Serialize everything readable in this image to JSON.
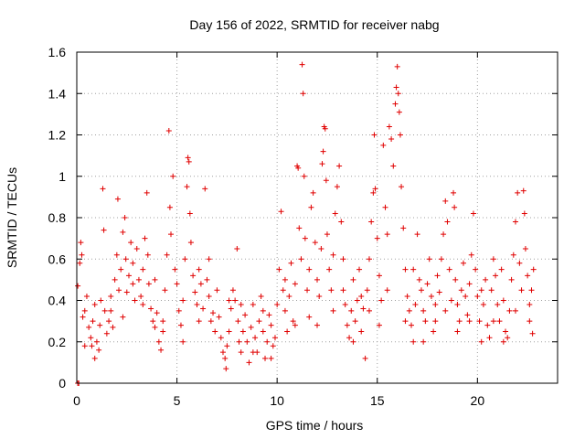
{
  "chart_data": {
    "type": "scatter",
    "title": "Day 156 of 2022, SRMTID for receiver nabg",
    "xlabel": "GPS time / hours",
    "ylabel": "SRMTID / TECUs",
    "xlim": [
      0,
      24
    ],
    "ylim": [
      0,
      1.6
    ],
    "xticks": [
      0,
      5,
      10,
      15,
      20
    ],
    "xtick_labels": [
      "0",
      "5",
      "10",
      "15",
      "20"
    ],
    "yticks": [
      0,
      0.2,
      0.4,
      0.6,
      0.8,
      1,
      1.2,
      1.4,
      1.6
    ],
    "ytick_labels": [
      "0",
      "0.2",
      "0.4",
      "0.6",
      "0.8",
      "1",
      "1.2",
      "1.4",
      "1.6"
    ],
    "grid": true,
    "marker": "plus",
    "marker_color": "#e00000",
    "series": [
      {
        "name": "SRMTID",
        "points": [
          [
            0.05,
            0.0
          ],
          [
            0.1,
            0.0
          ],
          [
            0.05,
            0.47
          ],
          [
            0.15,
            0.58
          ],
          [
            0.2,
            0.68
          ],
          [
            0.25,
            0.62
          ],
          [
            0.3,
            0.32
          ],
          [
            0.4,
            0.35
          ],
          [
            0.5,
            0.42
          ],
          [
            0.6,
            0.27
          ],
          [
            0.7,
            0.22
          ],
          [
            0.75,
            0.18
          ],
          [
            0.8,
            0.3
          ],
          [
            0.9,
            0.38
          ],
          [
            1.0,
            0.2
          ],
          [
            1.1,
            0.16
          ],
          [
            1.15,
            0.28
          ],
          [
            1.2,
            0.4
          ],
          [
            1.3,
            0.94
          ],
          [
            1.35,
            0.74
          ],
          [
            1.4,
            0.35
          ],
          [
            1.5,
            0.24
          ],
          [
            1.6,
            0.3
          ],
          [
            1.7,
            0.42
          ],
          [
            1.8,
            0.27
          ],
          [
            1.9,
            0.5
          ],
          [
            2.0,
            0.62
          ],
          [
            2.05,
            0.89
          ],
          [
            2.1,
            0.45
          ],
          [
            2.2,
            0.55
          ],
          [
            2.3,
            0.73
          ],
          [
            2.4,
            0.8
          ],
          [
            2.45,
            0.6
          ],
          [
            2.5,
            0.44
          ],
          [
            2.6,
            0.52
          ],
          [
            2.7,
            0.68
          ],
          [
            2.8,
            0.58
          ],
          [
            2.9,
            0.4
          ],
          [
            3.0,
            0.65
          ],
          [
            3.1,
            0.5
          ],
          [
            3.2,
            0.42
          ],
          [
            3.3,
            0.55
          ],
          [
            3.4,
            0.7
          ],
          [
            3.5,
            0.92
          ],
          [
            3.55,
            0.62
          ],
          [
            3.6,
            0.48
          ],
          [
            3.7,
            0.36
          ],
          [
            3.8,
            0.3
          ],
          [
            3.9,
            0.27
          ],
          [
            4.0,
            0.34
          ],
          [
            4.1,
            0.2
          ],
          [
            4.2,
            0.16
          ],
          [
            4.3,
            0.3
          ],
          [
            4.4,
            0.45
          ],
          [
            4.5,
            0.62
          ],
          [
            4.6,
            1.22
          ],
          [
            4.65,
            0.85
          ],
          [
            4.7,
            0.72
          ],
          [
            4.8,
            1.0
          ],
          [
            4.9,
            0.55
          ],
          [
            5.0,
            0.48
          ],
          [
            5.1,
            0.35
          ],
          [
            5.2,
            0.28
          ],
          [
            5.3,
            0.4
          ],
          [
            5.4,
            0.6
          ],
          [
            5.5,
            0.95
          ],
          [
            5.55,
            1.09
          ],
          [
            5.6,
            1.07
          ],
          [
            5.65,
            0.82
          ],
          [
            5.7,
            0.68
          ],
          [
            5.8,
            0.52
          ],
          [
            5.9,
            0.44
          ],
          [
            6.0,
            0.38
          ],
          [
            6.1,
            0.55
          ],
          [
            6.2,
            0.48
          ],
          [
            6.3,
            0.36
          ],
          [
            6.4,
            0.94
          ],
          [
            6.5,
            0.5
          ],
          [
            6.6,
            0.42
          ],
          [
            6.7,
            0.3
          ],
          [
            6.8,
            0.34
          ],
          [
            6.9,
            0.25
          ],
          [
            7.0,
            0.45
          ],
          [
            7.1,
            0.32
          ],
          [
            7.2,
            0.22
          ],
          [
            7.3,
            0.15
          ],
          [
            7.4,
            0.12
          ],
          [
            7.45,
            0.07
          ],
          [
            7.5,
            0.18
          ],
          [
            7.6,
            0.25
          ],
          [
            7.7,
            0.36
          ],
          [
            7.8,
            0.45
          ],
          [
            7.9,
            0.4
          ],
          [
            8.0,
            0.65
          ],
          [
            8.05,
            0.3
          ],
          [
            8.1,
            0.2
          ],
          [
            8.2,
            0.15
          ],
          [
            8.3,
            0.25
          ],
          [
            8.4,
            0.33
          ],
          [
            8.5,
            0.2
          ],
          [
            8.6,
            0.1
          ],
          [
            8.7,
            0.27
          ],
          [
            8.8,
            0.38
          ],
          [
            8.9,
            0.22
          ],
          [
            9.0,
            0.15
          ],
          [
            9.1,
            0.3
          ],
          [
            9.2,
            0.42
          ],
          [
            9.3,
            0.25
          ],
          [
            9.4,
            0.12
          ],
          [
            9.5,
            0.2
          ],
          [
            9.6,
            0.33
          ],
          [
            9.7,
            0.28
          ],
          [
            9.8,
            0.18
          ],
          [
            9.9,
            0.22
          ],
          [
            10.0,
            0.38
          ],
          [
            10.1,
            0.55
          ],
          [
            10.2,
            0.83
          ],
          [
            10.3,
            0.45
          ],
          [
            10.4,
            0.35
          ],
          [
            10.5,
            0.25
          ],
          [
            10.6,
            0.42
          ],
          [
            10.7,
            0.58
          ],
          [
            10.8,
            0.3
          ],
          [
            10.9,
            0.48
          ],
          [
            11.0,
            1.05
          ],
          [
            11.05,
            1.04
          ],
          [
            11.1,
            0.75
          ],
          [
            11.2,
            0.6
          ],
          [
            11.25,
            1.54
          ],
          [
            11.3,
            1.4
          ],
          [
            11.35,
            1.0
          ],
          [
            11.4,
            0.7
          ],
          [
            11.5,
            0.45
          ],
          [
            11.6,
            0.55
          ],
          [
            11.7,
            0.85
          ],
          [
            11.8,
            0.92
          ],
          [
            11.9,
            0.68
          ],
          [
            12.0,
            0.5
          ],
          [
            12.1,
            0.42
          ],
          [
            12.2,
            0.65
          ],
          [
            12.25,
            1.06
          ],
          [
            12.3,
            1.12
          ],
          [
            12.35,
            1.24
          ],
          [
            12.4,
            1.23
          ],
          [
            12.45,
            0.98
          ],
          [
            12.5,
            0.72
          ],
          [
            12.6,
            0.55
          ],
          [
            12.7,
            0.45
          ],
          [
            12.8,
            0.62
          ],
          [
            12.9,
            0.82
          ],
          [
            13.0,
            0.95
          ],
          [
            13.1,
            1.05
          ],
          [
            13.2,
            0.78
          ],
          [
            13.3,
            0.6
          ],
          [
            13.4,
            0.38
          ],
          [
            13.5,
            0.28
          ],
          [
            13.6,
            0.22
          ],
          [
            13.7,
            0.35
          ],
          [
            13.8,
            0.5
          ],
          [
            13.9,
            0.3
          ],
          [
            14.0,
            0.4
          ],
          [
            14.1,
            0.55
          ],
          [
            14.2,
            0.42
          ],
          [
            14.3,
            0.36
          ],
          [
            14.4,
            0.12
          ],
          [
            14.5,
            0.45
          ],
          [
            14.6,
            0.6
          ],
          [
            14.7,
            0.78
          ],
          [
            14.8,
            0.92
          ],
          [
            14.85,
            1.2
          ],
          [
            14.9,
            0.94
          ],
          [
            15.0,
            0.7
          ],
          [
            15.1,
            0.52
          ],
          [
            15.2,
            0.4
          ],
          [
            15.3,
            1.15
          ],
          [
            15.4,
            0.85
          ],
          [
            15.5,
            0.72
          ],
          [
            15.6,
            1.24
          ],
          [
            15.7,
            1.18
          ],
          [
            15.8,
            1.05
          ],
          [
            15.9,
            1.35
          ],
          [
            15.95,
            1.43
          ],
          [
            16.0,
            1.53
          ],
          [
            16.05,
            1.4
          ],
          [
            16.1,
            1.31
          ],
          [
            16.15,
            1.2
          ],
          [
            16.2,
            0.95
          ],
          [
            16.3,
            0.75
          ],
          [
            16.4,
            0.55
          ],
          [
            16.5,
            0.42
          ],
          [
            16.6,
            0.35
          ],
          [
            16.7,
            0.28
          ],
          [
            16.8,
            0.2
          ],
          [
            16.9,
            0.38
          ],
          [
            17.0,
            0.72
          ],
          [
            17.1,
            0.5
          ],
          [
            17.2,
            0.45
          ],
          [
            17.3,
            0.35
          ],
          [
            17.4,
            0.3
          ],
          [
            17.5,
            0.48
          ],
          [
            17.6,
            0.6
          ],
          [
            17.7,
            0.42
          ],
          [
            17.8,
            0.25
          ],
          [
            17.9,
            0.38
          ],
          [
            18.0,
            0.52
          ],
          [
            18.1,
            0.44
          ],
          [
            18.2,
            0.6
          ],
          [
            18.3,
            0.72
          ],
          [
            18.4,
            0.88
          ],
          [
            18.5,
            0.78
          ],
          [
            18.6,
            0.55
          ],
          [
            18.7,
            0.4
          ],
          [
            18.8,
            0.92
          ],
          [
            18.85,
            0.85
          ],
          [
            18.9,
            0.5
          ],
          [
            19.0,
            0.38
          ],
          [
            19.1,
            0.3
          ],
          [
            19.2,
            0.45
          ],
          [
            19.3,
            0.58
          ],
          [
            19.4,
            0.42
          ],
          [
            19.5,
            0.33
          ],
          [
            19.6,
            0.48
          ],
          [
            19.7,
            0.62
          ],
          [
            19.8,
            0.82
          ],
          [
            19.9,
            0.55
          ],
          [
            20.0,
            0.42
          ],
          [
            20.1,
            0.3
          ],
          [
            20.2,
            0.2
          ],
          [
            20.3,
            0.38
          ],
          [
            20.4,
            0.5
          ],
          [
            20.5,
            0.28
          ],
          [
            20.6,
            0.22
          ],
          [
            20.7,
            0.45
          ],
          [
            20.8,
            0.6
          ],
          [
            20.9,
            0.52
          ],
          [
            21.0,
            0.38
          ],
          [
            21.1,
            0.3
          ],
          [
            21.2,
            0.55
          ],
          [
            21.3,
            0.4
          ],
          [
            21.4,
            0.25
          ],
          [
            21.5,
            0.22
          ],
          [
            21.6,
            0.35
          ],
          [
            21.7,
            0.5
          ],
          [
            21.8,
            0.62
          ],
          [
            21.9,
            0.78
          ],
          [
            22.0,
            0.92
          ],
          [
            22.1,
            0.58
          ],
          [
            22.2,
            0.45
          ],
          [
            22.3,
            0.93
          ],
          [
            22.35,
            0.82
          ],
          [
            22.4,
            0.65
          ],
          [
            22.5,
            0.52
          ],
          [
            22.6,
            0.38
          ],
          [
            22.7,
            0.45
          ],
          [
            22.75,
            0.24
          ],
          [
            22.8,
            0.55
          ],
          [
            0.4,
            0.18
          ],
          [
            0.9,
            0.12
          ],
          [
            1.7,
            0.35
          ],
          [
            2.3,
            0.32
          ],
          [
            2.8,
            0.48
          ],
          [
            3.3,
            0.38
          ],
          [
            3.9,
            0.5
          ],
          [
            4.3,
            0.25
          ],
          [
            5.3,
            0.2
          ],
          [
            6.1,
            0.3
          ],
          [
            6.6,
            0.6
          ],
          [
            7.6,
            0.4
          ],
          [
            8.2,
            0.38
          ],
          [
            8.8,
            0.15
          ],
          [
            9.3,
            0.35
          ],
          [
            9.7,
            0.12
          ],
          [
            10.4,
            0.5
          ],
          [
            10.9,
            0.28
          ],
          [
            11.6,
            0.32
          ],
          [
            12.0,
            0.28
          ],
          [
            12.8,
            0.35
          ],
          [
            13.3,
            0.45
          ],
          [
            13.8,
            0.2
          ],
          [
            14.2,
            0.25
          ],
          [
            14.6,
            0.35
          ],
          [
            15.1,
            0.28
          ],
          [
            15.5,
            0.45
          ],
          [
            16.4,
            0.3
          ],
          [
            16.8,
            0.55
          ],
          [
            17.3,
            0.2
          ],
          [
            17.9,
            0.3
          ],
          [
            18.4,
            0.35
          ],
          [
            19.0,
            0.25
          ],
          [
            19.6,
            0.3
          ],
          [
            20.2,
            0.45
          ],
          [
            20.8,
            0.3
          ],
          [
            21.3,
            0.2
          ],
          [
            21.9,
            0.35
          ],
          [
            22.6,
            0.3
          ]
        ]
      }
    ]
  }
}
